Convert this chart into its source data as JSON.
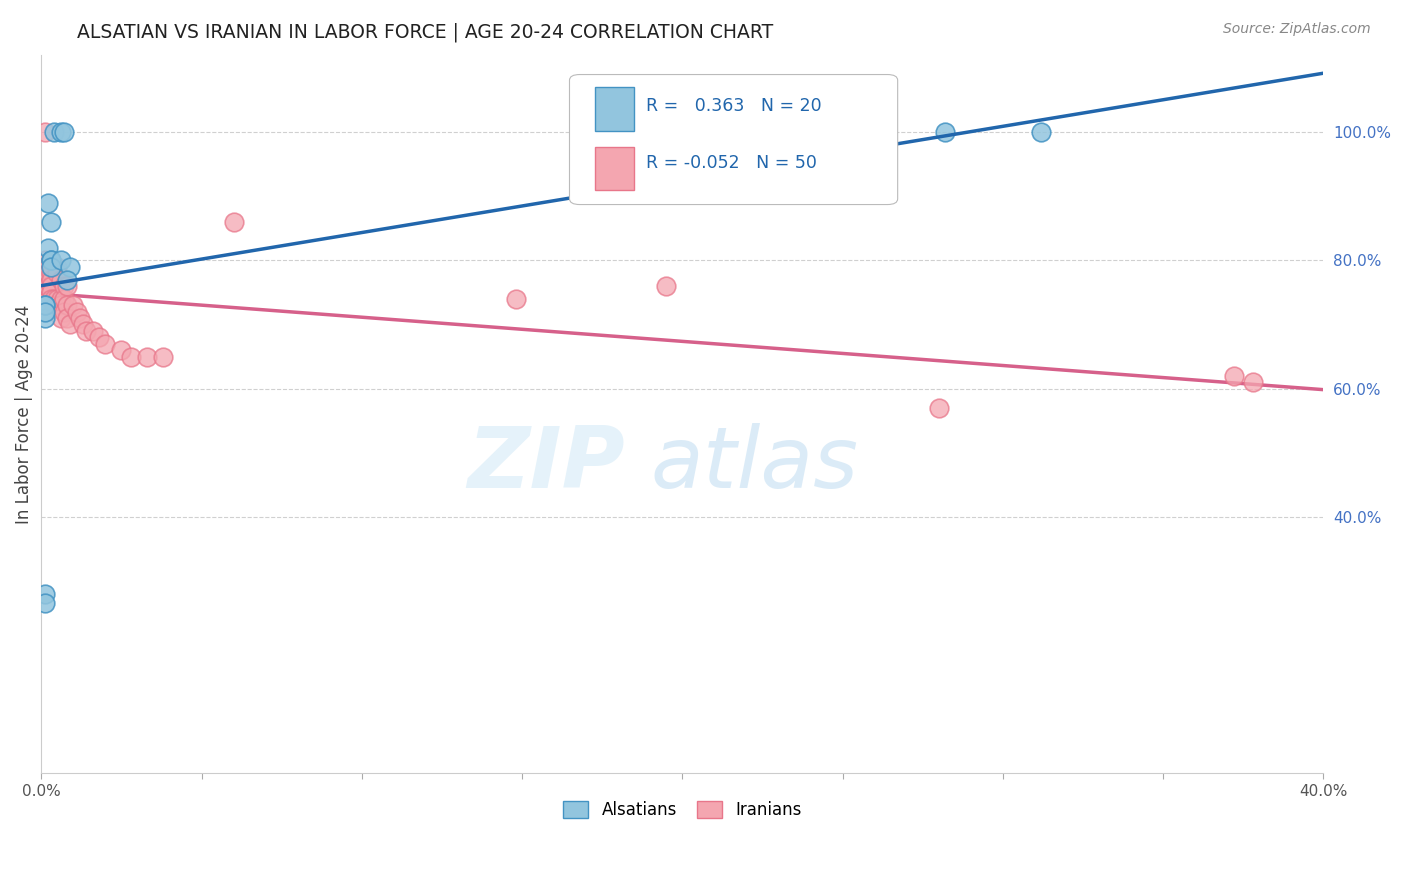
{
  "title": "ALSATIAN VS IRANIAN IN LABOR FORCE | AGE 20-24 CORRELATION CHART",
  "source": "Source: ZipAtlas.com",
  "ylabel": "In Labor Force | Age 20-24",
  "xlim": [
    0.0,
    0.4
  ],
  "ylim": [
    0.0,
    1.12
  ],
  "legend_r_alsatian": "0.363",
  "legend_n_alsatian": "20",
  "legend_r_iranian": "-0.052",
  "legend_n_iranian": "50",
  "alsatian_color": "#92c5de",
  "alsatian_edge": "#4393c3",
  "iranian_color": "#f4a6b0",
  "iranian_edge": "#e8768a",
  "trendline_alsatian_color": "#2166ac",
  "trendline_iranian_color": "#d6608a",
  "alsatian_x": [
    0.004,
    0.006,
    0.007,
    0.003,
    0.002,
    0.002,
    0.003,
    0.003,
    0.003,
    0.006,
    0.009,
    0.008,
    0.001,
    0.001,
    0.001,
    0.001,
    0.001,
    0.001,
    0.282,
    0.312
  ],
  "alsatian_y": [
    1.0,
    1.0,
    1.0,
    0.86,
    0.89,
    0.82,
    0.8,
    0.8,
    0.79,
    0.8,
    0.79,
    0.77,
    0.71,
    0.73,
    0.73,
    0.28,
    0.265,
    0.72,
    1.0,
    1.0
  ],
  "iranian_x": [
    0.001,
    0.001,
    0.001,
    0.001,
    0.001,
    0.002,
    0.002,
    0.002,
    0.002,
    0.002,
    0.003,
    0.003,
    0.003,
    0.003,
    0.003,
    0.004,
    0.004,
    0.005,
    0.005,
    0.005,
    0.005,
    0.006,
    0.006,
    0.006,
    0.006,
    0.007,
    0.007,
    0.007,
    0.008,
    0.008,
    0.008,
    0.009,
    0.01,
    0.011,
    0.012,
    0.013,
    0.014,
    0.016,
    0.018,
    0.02,
    0.025,
    0.028,
    0.033,
    0.038,
    0.06,
    0.148,
    0.195,
    0.28,
    0.372,
    0.378
  ],
  "iranian_y": [
    1.0,
    0.8,
    0.79,
    0.78,
    0.76,
    0.79,
    0.79,
    0.78,
    0.78,
    0.76,
    0.78,
    0.77,
    0.76,
    0.75,
    0.74,
    0.74,
    0.73,
    0.79,
    0.78,
    0.74,
    0.73,
    0.77,
    0.74,
    0.73,
    0.71,
    0.76,
    0.74,
    0.72,
    0.76,
    0.73,
    0.71,
    0.7,
    0.73,
    0.72,
    0.71,
    0.7,
    0.69,
    0.69,
    0.68,
    0.67,
    0.66,
    0.65,
    0.65,
    0.65,
    0.86,
    0.74,
    0.76,
    0.57,
    0.62,
    0.61
  ]
}
